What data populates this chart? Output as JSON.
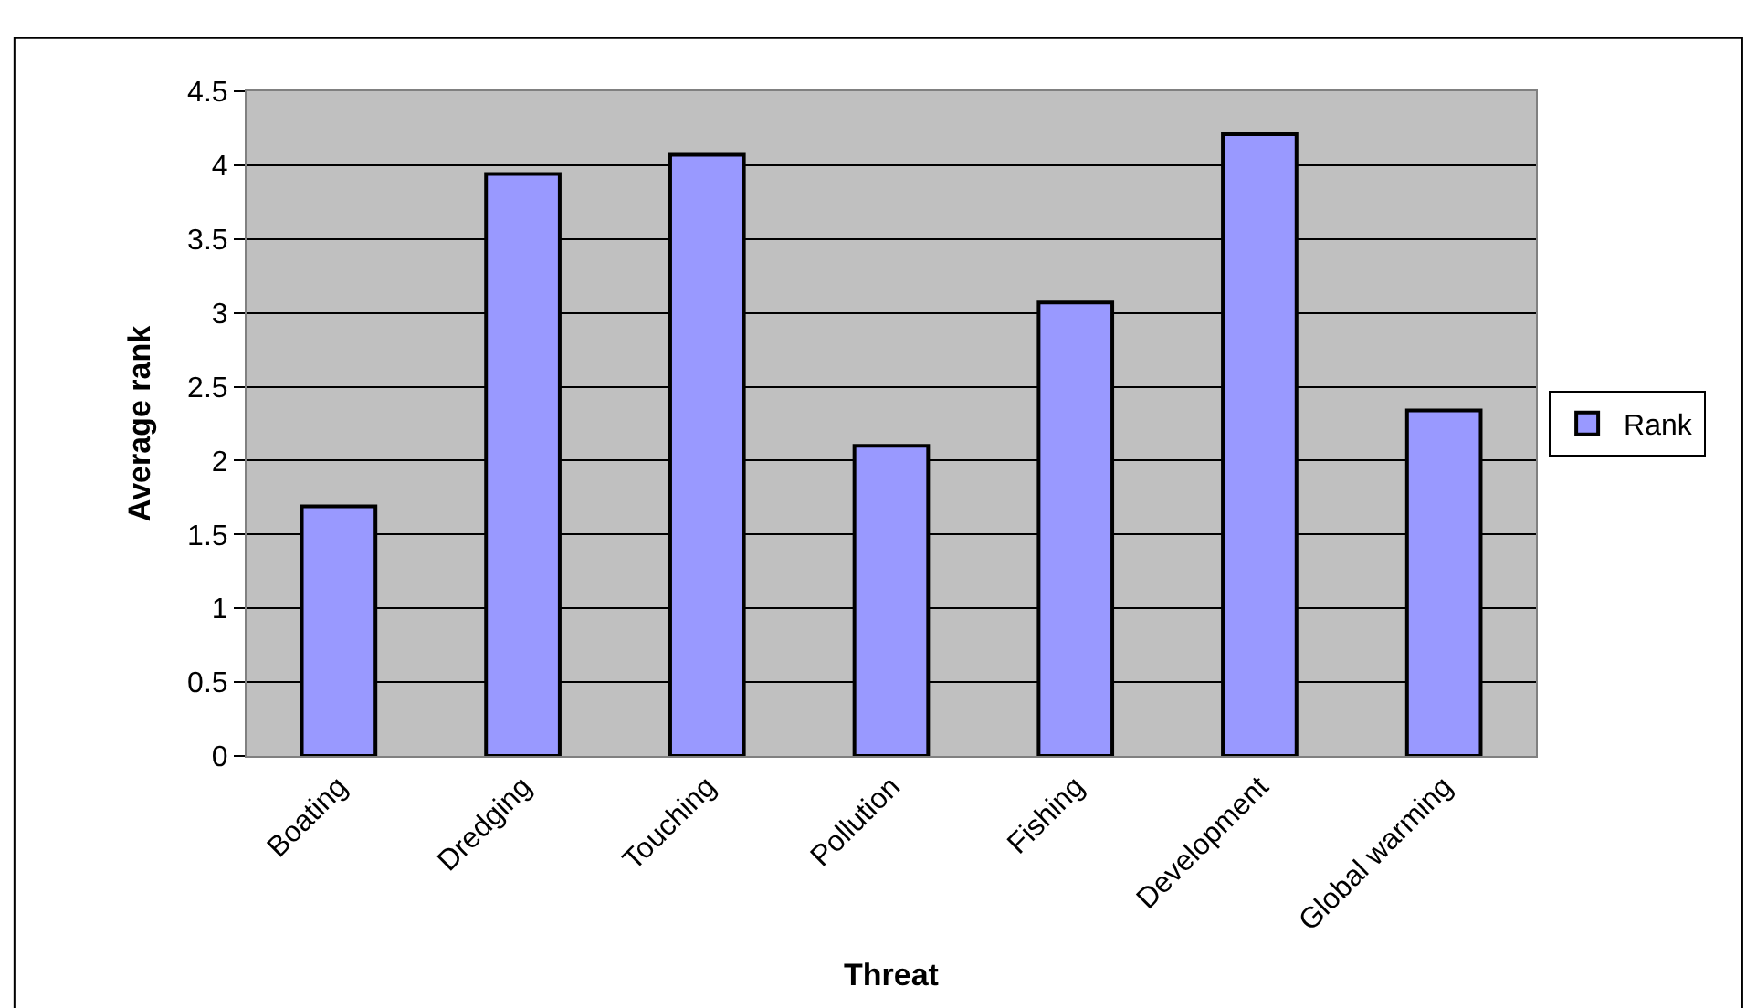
{
  "chart_data": {
    "type": "bar",
    "xlabel": "Threat",
    "ylabel": "Average rank",
    "categories": [
      "Boating",
      "Dredging",
      "Touching",
      "Pollution",
      "Fishing",
      "Development",
      "Global warming"
    ],
    "series": [
      {
        "name": "Rank",
        "color": "#9999ff",
        "values": [
          1.69,
          3.94,
          4.07,
          2.1,
          3.07,
          4.21,
          2.34
        ]
      }
    ],
    "ylim": [
      0,
      4.5
    ],
    "yticks": [
      0,
      0.5,
      1,
      1.5,
      2,
      2.5,
      3,
      3.5,
      4,
      4.5
    ],
    "grid": "y",
    "legend": "right"
  }
}
